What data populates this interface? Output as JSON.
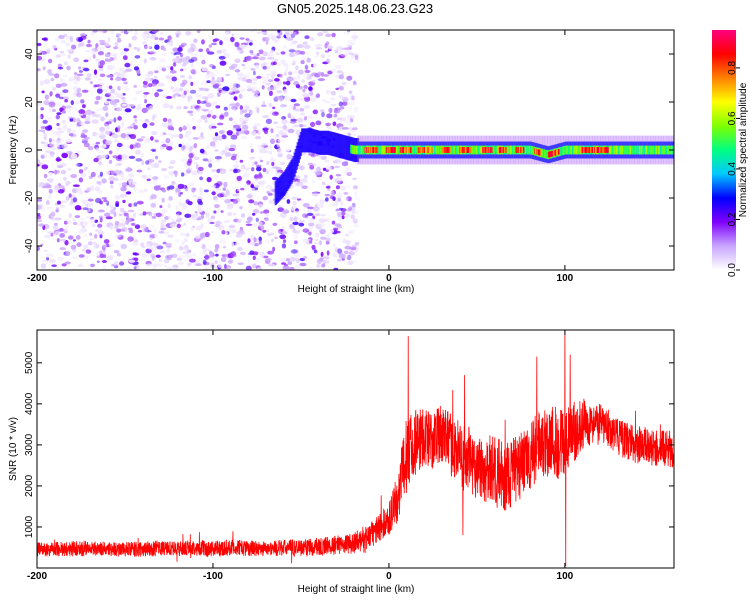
{
  "chart_data": [
    {
      "type": "heatmap",
      "title": "GN05.2025.148.06.23.G23",
      "xlabel": "Height of straight line (km)",
      "ylabel": "Frequency (Hz)",
      "xlim": [
        -200,
        162
      ],
      "ylim": [
        -50,
        50
      ],
      "x_ticks": [
        -200,
        -100,
        0,
        100
      ],
      "y_ticks": [
        -40,
        -20,
        0,
        20,
        40
      ],
      "colorbar": {
        "label": "Normalized spectral amplitude",
        "range": [
          0,
          0.95
        ],
        "ticks": [
          "0.0",
          "0.2",
          "0.4",
          "0.6",
          "0.8"
        ],
        "colors": [
          "#ffffff",
          "#c9a6ff",
          "#7f00ff",
          "#0000ff",
          "#00c8ff",
          "#00ff80",
          "#80ff00",
          "#ffff00",
          "#ff8000",
          "#ff0000",
          "#ff0080"
        ]
      },
      "regions": [
        {
          "x_range": [
            -200,
            -18
          ],
          "description_values": {
            "amplitude": [
              0.02,
              0.25
            ],
            "freq_range": [
              -50,
              50
            ]
          }
        },
        {
          "x_range": [
            -18,
            162
          ],
          "center_freq": 0,
          "peak_amplitude": 0.9
        }
      ],
      "signal_track": {
        "x": [
          -65,
          -60,
          -55,
          -50,
          -45,
          -40,
          -35,
          -30,
          -25,
          -20,
          -15,
          -10,
          -5,
          0,
          10,
          20,
          30,
          40,
          50,
          60,
          70,
          80,
          90,
          100,
          110,
          120,
          130,
          140,
          150,
          162
        ],
        "y": [
          -18,
          -14,
          -8,
          4,
          4,
          3,
          3,
          2,
          1,
          0,
          0,
          0,
          0,
          0,
          0,
          0,
          0,
          0,
          0,
          0,
          0,
          0,
          -2,
          0,
          0,
          0,
          0,
          0,
          0,
          0
        ]
      },
      "grid": false
    },
    {
      "type": "line",
      "xlabel": "Height of straight line (km)",
      "ylabel": "SNR (10 * v/v)",
      "xlim": [
        -200,
        162
      ],
      "ylim": [
        0,
        5800
      ],
      "x_ticks": [
        -200,
        -100,
        0,
        100
      ],
      "y_ticks": [
        1000,
        2000,
        3000,
        4000,
        5000
      ],
      "color": "#ff0000",
      "envelope": {
        "x": [
          -200,
          -190,
          -180,
          -170,
          -160,
          -150,
          -140,
          -130,
          -120,
          -110,
          -100,
          -90,
          -80,
          -70,
          -60,
          -50,
          -40,
          -30,
          -20,
          -15,
          -10,
          -5,
          0,
          3,
          6,
          9,
          12,
          15,
          20,
          25,
          30,
          35,
          40,
          45,
          50,
          55,
          60,
          65,
          70,
          75,
          80,
          85,
          90,
          95,
          100,
          105,
          110,
          115,
          120,
          125,
          130,
          135,
          140,
          145,
          150,
          155,
          160,
          162
        ],
        "mean": [
          450,
          460,
          470,
          480,
          470,
          450,
          460,
          480,
          470,
          490,
          460,
          500,
          480,
          470,
          490,
          500,
          520,
          560,
          600,
          700,
          800,
          1000,
          1200,
          1500,
          1900,
          2600,
          3000,
          3100,
          3200,
          3100,
          3300,
          3000,
          2800,
          2600,
          2500,
          2400,
          2300,
          2200,
          2300,
          2500,
          2700,
          3000,
          3100,
          3100,
          3000,
          3300,
          3500,
          3500,
          3500,
          3400,
          3200,
          3100,
          3000,
          3000,
          2900,
          2900,
          2900,
          2900
        ],
        "spread": [
          180,
          180,
          190,
          190,
          180,
          180,
          190,
          190,
          180,
          190,
          200,
          200,
          190,
          190,
          200,
          210,
          220,
          230,
          250,
          300,
          320,
          350,
          400,
          500,
          700,
          900,
          900,
          850,
          750,
          700,
          700,
          750,
          800,
          850,
          800,
          850,
          900,
          900,
          850,
          800,
          800,
          850,
          900,
          950,
          900,
          750,
          600,
          500,
          500,
          450,
          450,
          450,
          450,
          450,
          450,
          450,
          450,
          450
        ]
      },
      "spikes": [
        {
          "x": 11,
          "y": 5650
        },
        {
          "x": 100,
          "y": 5800
        },
        {
          "x": 103,
          "y": 5200
        },
        {
          "x": 84,
          "y": 5150
        },
        {
          "x": 100.5,
          "y": 50
        },
        {
          "x": 42,
          "y": 800
        },
        {
          "x": 43,
          "y": 4700
        }
      ],
      "grid": false
    }
  ]
}
